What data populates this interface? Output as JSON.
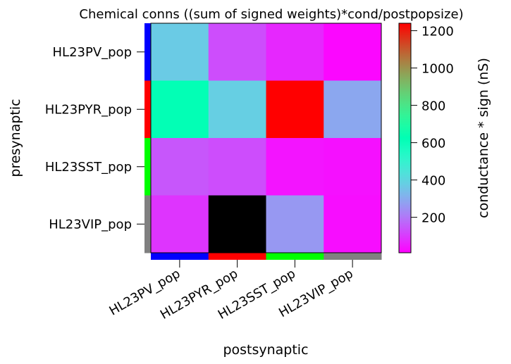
{
  "chart_data": {
    "type": "heatmap",
    "title": "Chemical conns ((sum of signed weights)*cond/postpopsize)",
    "xlabel": "postsynaptic",
    "ylabel": "presynaptic",
    "colorbar_label": "conductance * sign (nS)",
    "colormap": "rainbow",
    "color_range": [
      10,
      1240
    ],
    "colorbar_ticks": [
      200,
      400,
      600,
      800,
      1000,
      1200
    ],
    "rows": [
      "HL23PV_pop",
      "HL23PYR_pop",
      "HL23SST_pop",
      "HL23VIP_pop"
    ],
    "columns": [
      "HL23PV_pop",
      "HL23PYR_pop",
      "HL23SST_pop",
      "HL23VIP_pop"
    ],
    "values": [
      [
        370,
        130,
        70,
        20
      ],
      [
        620,
        380,
        1240,
        290
      ],
      [
        145,
        130,
        40,
        35
      ],
      [
        90,
        null,
        260,
        30
      ]
    ],
    "missing_color": "#000000",
    "population_colors": {
      "HL23PV_pop": "#0000ff",
      "HL23PYR_pop": "#ff0000",
      "HL23SST_pop": "#00ff00",
      "HL23VIP_pop": "#808080"
    }
  }
}
